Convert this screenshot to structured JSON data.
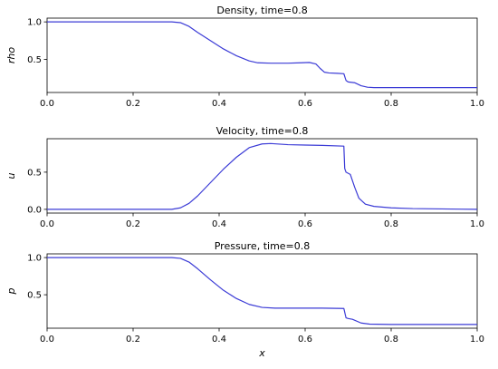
{
  "chart_data": [
    {
      "type": "line",
      "title": "Density, time=0.8",
      "xlabel": "",
      "ylabel": "rho",
      "xlim": [
        0.0,
        1.0
      ],
      "ylim": [
        0.06,
        1.05
      ],
      "xticks": [
        "0.0",
        "0.2",
        "0.4",
        "0.6",
        "0.8",
        "1.0"
      ],
      "yticks": [
        {
          "v": 0.5,
          "label": "0.5"
        },
        {
          "v": 1.0,
          "label": "1.0"
        }
      ],
      "line_color": "#3b3bd6",
      "series": [
        {
          "x": [
            0.0,
            0.29,
            0.31,
            0.33,
            0.35,
            0.38,
            0.41,
            0.44,
            0.47,
            0.49,
            0.52,
            0.56,
            0.59,
            0.61,
            0.625,
            0.635,
            0.645,
            0.655,
            0.675,
            0.69,
            0.695,
            0.7,
            0.715,
            0.73,
            0.745,
            0.76,
            0.8,
            1.0
          ],
          "y": [
            1.0,
            1.0,
            0.99,
            0.94,
            0.86,
            0.75,
            0.64,
            0.55,
            0.48,
            0.455,
            0.45,
            0.45,
            0.455,
            0.46,
            0.44,
            0.38,
            0.33,
            0.32,
            0.315,
            0.31,
            0.22,
            0.2,
            0.19,
            0.15,
            0.13,
            0.125,
            0.125,
            0.125
          ]
        }
      ]
    },
    {
      "type": "line",
      "title": "Velocity, time=0.8",
      "xlabel": "",
      "ylabel": "u",
      "xlim": [
        0.0,
        1.0
      ],
      "ylim": [
        -0.05,
        0.95
      ],
      "xticks": [
        "0.0",
        "0.2",
        "0.4",
        "0.6",
        "0.8",
        "1.0"
      ],
      "yticks": [
        {
          "v": 0.0,
          "label": "0.0"
        },
        {
          "v": 0.5,
          "label": "0.5"
        }
      ],
      "line_color": "#3b3bd6",
      "series": [
        {
          "x": [
            0.0,
            0.29,
            0.31,
            0.33,
            0.35,
            0.38,
            0.41,
            0.44,
            0.47,
            0.5,
            0.52,
            0.56,
            0.6,
            0.64,
            0.69,
            0.692,
            0.695,
            0.705,
            0.715,
            0.725,
            0.74,
            0.76,
            0.8,
            0.85,
            1.0
          ],
          "y": [
            0.0,
            0.0,
            0.02,
            0.08,
            0.18,
            0.36,
            0.54,
            0.7,
            0.83,
            0.88,
            0.885,
            0.87,
            0.865,
            0.86,
            0.85,
            0.55,
            0.5,
            0.47,
            0.3,
            0.15,
            0.07,
            0.04,
            0.02,
            0.01,
            0.0
          ]
        }
      ]
    },
    {
      "type": "line",
      "title": "Pressure, time=0.8",
      "xlabel": "x",
      "ylabel": "p",
      "xlim": [
        0.0,
        1.0
      ],
      "ylim": [
        0.05,
        1.05
      ],
      "xticks": [
        "0.0",
        "0.2",
        "0.4",
        "0.6",
        "0.8",
        "1.0"
      ],
      "yticks": [
        {
          "v": 0.5,
          "label": "0.5"
        },
        {
          "v": 1.0,
          "label": "1.0"
        }
      ],
      "line_color": "#3b3bd6",
      "series": [
        {
          "x": [
            0.0,
            0.29,
            0.31,
            0.33,
            0.35,
            0.38,
            0.41,
            0.44,
            0.47,
            0.5,
            0.53,
            0.58,
            0.64,
            0.69,
            0.695,
            0.7,
            0.71,
            0.73,
            0.75,
            0.8,
            1.0
          ],
          "y": [
            1.0,
            1.0,
            0.99,
            0.94,
            0.85,
            0.7,
            0.56,
            0.45,
            0.37,
            0.33,
            0.32,
            0.32,
            0.32,
            0.315,
            0.19,
            0.18,
            0.17,
            0.12,
            0.105,
            0.1,
            0.1
          ]
        }
      ]
    }
  ]
}
